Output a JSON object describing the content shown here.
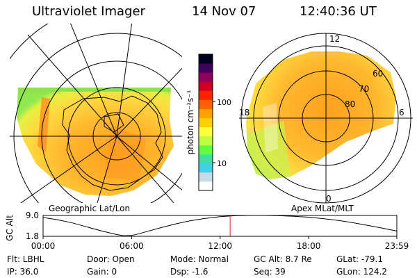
{
  "header": {
    "title": "Ultraviolet Imager",
    "date": "14 Nov 07",
    "time": "12:40:36 UT"
  },
  "geo_panel": {
    "label": "Geographic Lat/Lon"
  },
  "mlt_panel": {
    "label": "Apex MLat/MLT",
    "mlt_labels": {
      "top": "12",
      "left": "18",
      "right": "6",
      "bottom": "0"
    },
    "lat_labels": [
      "60",
      "70",
      "80"
    ]
  },
  "colorbar": {
    "unit_label": "photon cm⁻²s⁻¹",
    "ticks": [
      "100",
      "10"
    ],
    "colors": [
      "#ffffff",
      "#c8dce8",
      "#40d0e8",
      "#40e0a0",
      "#60ff40",
      "#c0ff40",
      "#ffff40",
      "#ffd000",
      "#ffa000",
      "#ff6000",
      "#ff2000",
      "#d00020",
      "#900060",
      "#400060",
      "#000020"
    ]
  },
  "chart_data": {
    "type": "line",
    "title": "",
    "ylabel": "GC Alt",
    "y_ticks": [
      "9.0",
      "1.8"
    ],
    "x_ticks": [
      "00:00",
      "06:00",
      "12:00",
      "18:00",
      "23:59"
    ],
    "ylim": [
      1.8,
      9.0
    ],
    "xlim_hours": [
      0,
      23.98
    ],
    "current_time_hours": 12.68,
    "series": [
      {
        "name": "",
        "x": [
          0,
          1,
          2,
          3,
          4,
          5,
          5.5,
          6,
          6.5,
          7,
          8,
          9,
          10,
          11,
          12,
          13,
          14,
          15,
          16,
          17,
          18,
          19,
          20,
          21,
          22,
          23,
          23.98
        ],
        "y": [
          8.3,
          7.5,
          6.4,
          5.0,
          3.6,
          2.4,
          2.0,
          2.1,
          2.7,
          3.4,
          4.8,
          6.1,
          7.2,
          8.0,
          8.6,
          8.9,
          9.0,
          9.0,
          8.9,
          8.7,
          8.4,
          7.9,
          7.3,
          6.5,
          5.6,
          4.6,
          3.6
        ]
      }
    ]
  },
  "info": {
    "filter": "Flt: LBHL",
    "ip": "IP: 36.0",
    "door": "Door: Open",
    "gain": "Gain:  0",
    "mode": "Mode: Normal",
    "dsp": "Dsp:   -1.6",
    "gc_alt": "GC Alt: 8.7 Re",
    "seq": "Seq: 39",
    "glat": "GLat: -79.1",
    "glon": "GLon: 124.2"
  }
}
